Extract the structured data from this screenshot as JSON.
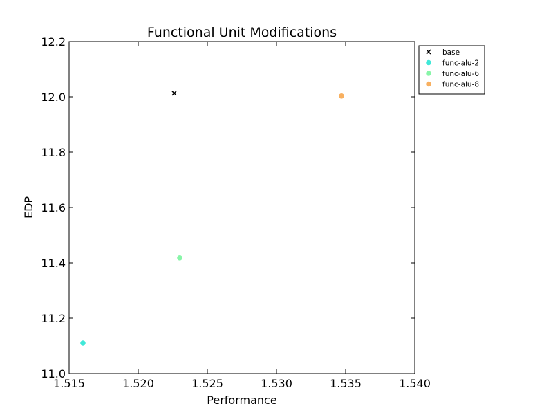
{
  "chart_data": {
    "type": "scatter",
    "title": "Functional Unit Modifications",
    "xlabel": "Performance",
    "ylabel": "EDP",
    "xlim": [
      1.515,
      1.54
    ],
    "ylim": [
      11.0,
      12.2
    ],
    "xticks": [
      "1.515",
      "1.520",
      "1.525",
      "1.530",
      "1.535",
      "1.540"
    ],
    "yticks": [
      "11.0",
      "11.2",
      "11.4",
      "11.6",
      "11.8",
      "12.0",
      "12.2"
    ],
    "grid": false,
    "legend_position": "outside-top-right",
    "series": [
      {
        "name": "base",
        "marker": "x",
        "color": "#000000",
        "x": [
          1.5226
        ],
        "y": [
          12.013
        ]
      },
      {
        "name": "func-alu-2",
        "marker": "circle",
        "color": "#40e8d8",
        "x": [
          1.516
        ],
        "y": [
          11.11
        ]
      },
      {
        "name": "func-alu-6",
        "marker": "circle",
        "color": "#88f5a8",
        "x": [
          1.523
        ],
        "y": [
          11.418
        ]
      },
      {
        "name": "func-alu-8",
        "marker": "circle",
        "color": "#f8b060",
        "x": [
          1.5347
        ],
        "y": [
          12.003
        ]
      }
    ]
  }
}
